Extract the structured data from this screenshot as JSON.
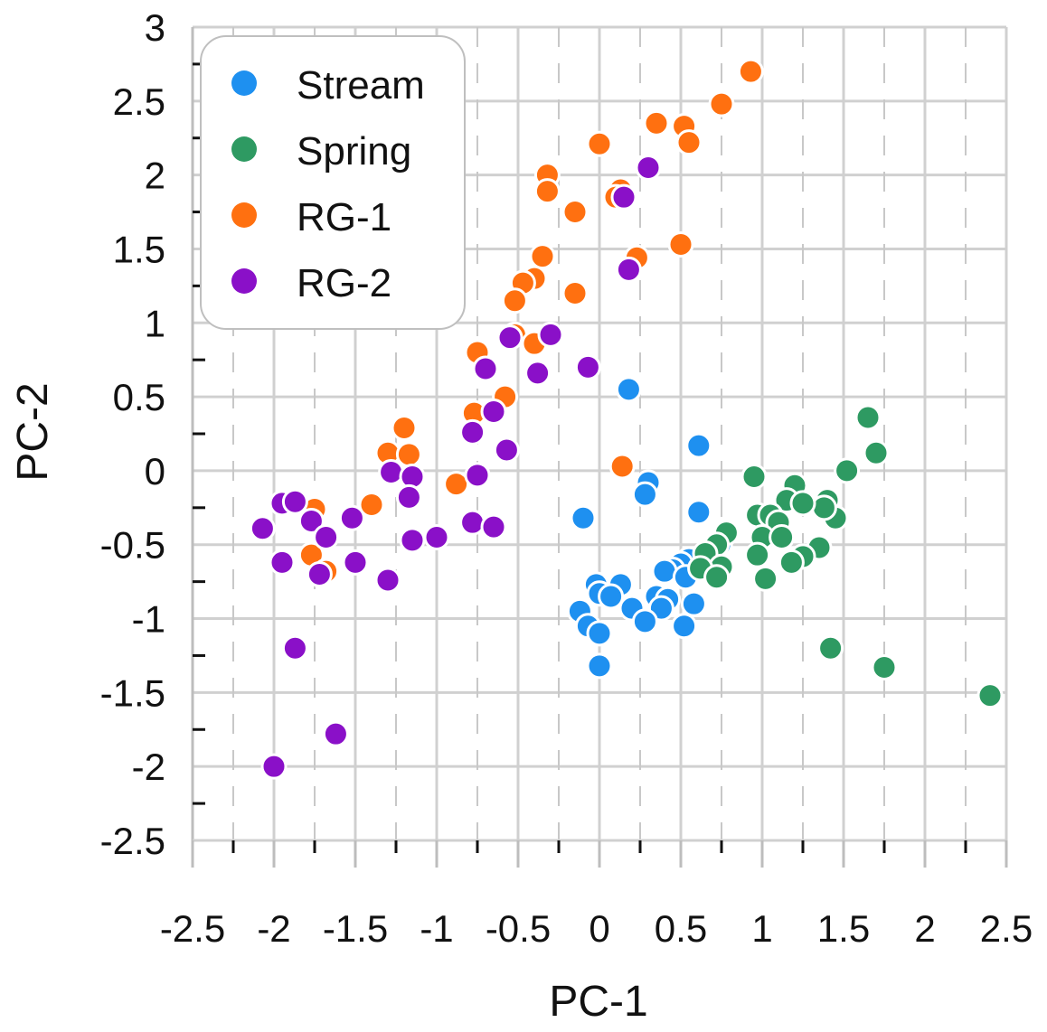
{
  "chart_data": {
    "type": "scatter",
    "xlabel": "PC-1",
    "ylabel": "PC-2",
    "xlim": [
      -2.5,
      2.5
    ],
    "ylim": [
      -2.5,
      3
    ],
    "xticks": [
      "-2.5",
      "-2",
      "-1.5",
      "-1",
      "-0.5",
      "0",
      "0.5",
      "1",
      "1.5",
      "2",
      "2.5"
    ],
    "yticks": [
      "3",
      "2.5",
      "2",
      "1.5",
      "1",
      "0.5",
      "0",
      "-0.5",
      "-1",
      "-1.5",
      "-2",
      "-2.5"
    ],
    "grid": true,
    "legend_position": "top-left",
    "series": [
      {
        "name": "Stream",
        "color": "#1E90F0",
        "points": [
          [
            0.18,
            0.55
          ],
          [
            0.61,
            0.17
          ],
          [
            0.3,
            -0.08
          ],
          [
            0.28,
            -0.16
          ],
          [
            -0.1,
            -0.32
          ],
          [
            0.61,
            -0.28
          ],
          [
            0.74,
            -0.5
          ],
          [
            0.55,
            -0.6
          ],
          [
            0.5,
            -0.63
          ],
          [
            0.45,
            -0.67
          ],
          [
            0.4,
            -0.68
          ],
          [
            0.53,
            -0.72
          ],
          [
            -0.02,
            -0.77
          ],
          [
            0.13,
            -0.77
          ],
          [
            0.0,
            -0.83
          ],
          [
            0.07,
            -0.85
          ],
          [
            0.35,
            -0.85
          ],
          [
            0.42,
            -0.87
          ],
          [
            0.58,
            -0.9
          ],
          [
            0.2,
            -0.93
          ],
          [
            -0.12,
            -0.95
          ],
          [
            0.38,
            -0.93
          ],
          [
            0.28,
            -1.02
          ],
          [
            -0.07,
            -1.05
          ],
          [
            0.0,
            -1.1
          ],
          [
            0.52,
            -1.05
          ],
          [
            0.0,
            -1.32
          ]
        ]
      },
      {
        "name": "Spring",
        "color": "#2E9A62",
        "points": [
          [
            1.65,
            0.36
          ],
          [
            1.7,
            0.12
          ],
          [
            1.52,
            0.0
          ],
          [
            0.95,
            -0.04
          ],
          [
            1.2,
            -0.1
          ],
          [
            1.15,
            -0.2
          ],
          [
            1.4,
            -0.2
          ],
          [
            0.97,
            -0.3
          ],
          [
            1.05,
            -0.3
          ],
          [
            1.45,
            -0.32
          ],
          [
            1.38,
            -0.25
          ],
          [
            1.25,
            -0.22
          ],
          [
            1.1,
            -0.35
          ],
          [
            0.78,
            -0.42
          ],
          [
            1.0,
            -0.45
          ],
          [
            1.12,
            -0.45
          ],
          [
            0.72,
            -0.5
          ],
          [
            1.35,
            -0.52
          ],
          [
            0.65,
            -0.56
          ],
          [
            0.97,
            -0.57
          ],
          [
            1.25,
            -0.58
          ],
          [
            1.18,
            -0.62
          ],
          [
            0.75,
            -0.65
          ],
          [
            0.62,
            -0.66
          ],
          [
            0.72,
            -0.72
          ],
          [
            1.02,
            -0.73
          ],
          [
            1.42,
            -1.2
          ],
          [
            1.75,
            -1.33
          ],
          [
            2.4,
            -1.52
          ]
        ]
      },
      {
        "name": "RG-1",
        "color": "#FF7010",
        "points": [
          [
            0.93,
            2.7
          ],
          [
            0.75,
            2.48
          ],
          [
            0.35,
            2.35
          ],
          [
            0.52,
            2.33
          ],
          [
            0.55,
            2.22
          ],
          [
            0.0,
            2.21
          ],
          [
            -0.32,
            2.0
          ],
          [
            -0.32,
            1.89
          ],
          [
            0.13,
            1.9
          ],
          [
            0.1,
            1.85
          ],
          [
            -0.15,
            1.75
          ],
          [
            0.5,
            1.53
          ],
          [
            0.23,
            1.44
          ],
          [
            -0.35,
            1.45
          ],
          [
            -0.4,
            1.3
          ],
          [
            -0.47,
            1.27
          ],
          [
            -0.52,
            1.15
          ],
          [
            -0.15,
            1.2
          ],
          [
            -0.75,
            0.8
          ],
          [
            -0.52,
            0.92
          ],
          [
            -0.4,
            0.86
          ],
          [
            -0.58,
            0.5
          ],
          [
            -0.77,
            0.39
          ],
          [
            0.14,
            0.03
          ],
          [
            -0.88,
            -0.09
          ],
          [
            -1.2,
            0.29
          ],
          [
            -1.3,
            0.12
          ],
          [
            -1.17,
            0.11
          ],
          [
            -1.4,
            -0.23
          ],
          [
            -1.75,
            -0.26
          ],
          [
            -1.77,
            -0.57
          ],
          [
            -1.68,
            -0.68
          ]
        ]
      },
      {
        "name": "RG-2",
        "color": "#8A10C8",
        "points": [
          [
            0.3,
            2.05
          ],
          [
            0.15,
            1.85
          ],
          [
            0.18,
            1.36
          ],
          [
            -0.3,
            0.92
          ],
          [
            -0.55,
            0.9
          ],
          [
            -0.07,
            0.7
          ],
          [
            -0.7,
            0.69
          ],
          [
            -0.38,
            0.66
          ],
          [
            -0.65,
            0.4
          ],
          [
            -0.78,
            0.26
          ],
          [
            -0.57,
            0.14
          ],
          [
            -0.75,
            -0.03
          ],
          [
            -1.28,
            -0.01
          ],
          [
            -1.15,
            -0.04
          ],
          [
            -1.17,
            -0.18
          ],
          [
            -1.95,
            -0.22
          ],
          [
            -1.87,
            -0.21
          ],
          [
            -1.77,
            -0.34
          ],
          [
            -1.52,
            -0.32
          ],
          [
            -0.78,
            -0.35
          ],
          [
            -0.65,
            -0.38
          ],
          [
            -2.07,
            -0.39
          ],
          [
            -1.68,
            -0.45
          ],
          [
            -1.15,
            -0.47
          ],
          [
            -1.0,
            -0.45
          ],
          [
            -1.95,
            -0.62
          ],
          [
            -1.5,
            -0.62
          ],
          [
            -1.72,
            -0.7
          ],
          [
            -1.3,
            -0.74
          ],
          [
            -1.87,
            -1.2
          ],
          [
            -1.62,
            -1.78
          ],
          [
            -2.0,
            -2.0
          ]
        ]
      }
    ]
  }
}
